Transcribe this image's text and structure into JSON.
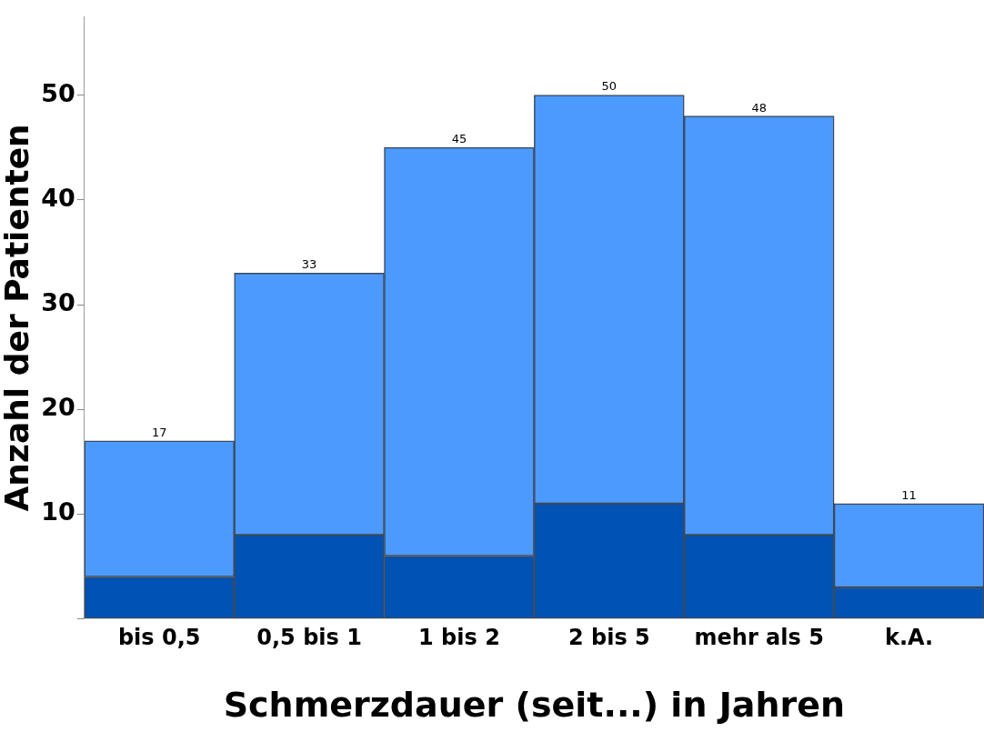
{
  "chart_data": {
    "type": "bar",
    "xlabel": "Schmerzdauer (seit...) in Jahren",
    "ylabel": "Anzahl der Patienten",
    "categories": [
      "bis 0,5",
      "0,5 bis 1",
      "1 bis 2",
      "2 bis 5",
      "mehr als 5",
      "k.A."
    ],
    "stacked": true,
    "series": [
      {
        "color": "#0052b4",
        "values": [
          4,
          8,
          6,
          11,
          8,
          3
        ]
      },
      {
        "color": "#4d9aff",
        "values": [
          13,
          25,
          39,
          39,
          40,
          8
        ]
      }
    ],
    "totals": [
      "17",
      "33",
      "45",
      "50",
      "48",
      "11"
    ],
    "ylim": [
      0,
      57.5
    ],
    "yticks": [
      {
        "value": 0,
        "label": null
      },
      10,
      20,
      30,
      40,
      50
    ],
    "grid": false,
    "legend": false
  }
}
